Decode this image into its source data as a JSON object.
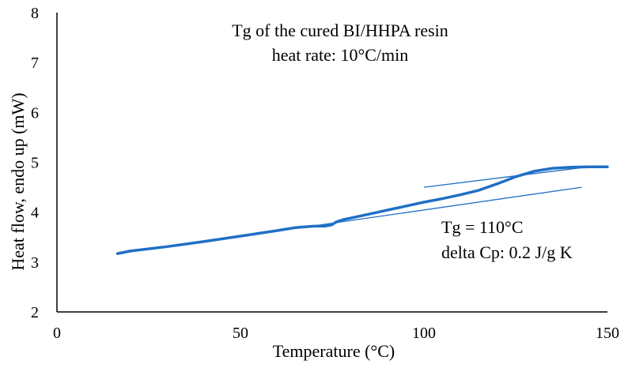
{
  "chart_data": {
    "type": "line",
    "title_lines": [
      "Tg of the cured BI/HHPA resin",
      "heat rate: 10°C/min"
    ],
    "xlabel": "Temperature (°C)",
    "ylabel": "Heat flow, endo up (mW)",
    "xlim": [
      0,
      150
    ],
    "ylim": [
      2,
      8
    ],
    "xticks": [
      0,
      50,
      100,
      150
    ],
    "yticks": [
      2,
      3,
      4,
      5,
      6,
      7,
      8
    ],
    "grid": false,
    "series": [
      {
        "name": "DSC curve",
        "color": "#1F6FC5",
        "x": [
          16.5,
          20,
          30,
          40,
          50,
          60,
          65,
          70,
          73,
          75,
          76,
          78,
          80,
          85,
          90,
          95,
          100,
          105,
          110,
          115,
          120,
          125,
          130,
          135,
          140,
          145,
          150
        ],
        "y": [
          3.17,
          3.22,
          3.31,
          3.41,
          3.52,
          3.63,
          3.69,
          3.72,
          3.72,
          3.75,
          3.8,
          3.85,
          3.88,
          3.96,
          4.04,
          4.12,
          4.2,
          4.27,
          4.35,
          4.44,
          4.57,
          4.71,
          4.82,
          4.88,
          4.9,
          4.91,
          4.91
        ]
      }
    ],
    "tangent_lines": [
      {
        "name": "glassy baseline tangent",
        "x": [
          60,
          143
        ],
        "y": [
          3.62,
          4.5
        ]
      },
      {
        "name": "rubbery baseline tangent",
        "x": [
          100,
          145
        ],
        "y": [
          4.5,
          4.91
        ]
      }
    ],
    "annotations": [
      "Tg = 110°C",
      "delta Cp: 0.2 J/g K"
    ]
  }
}
